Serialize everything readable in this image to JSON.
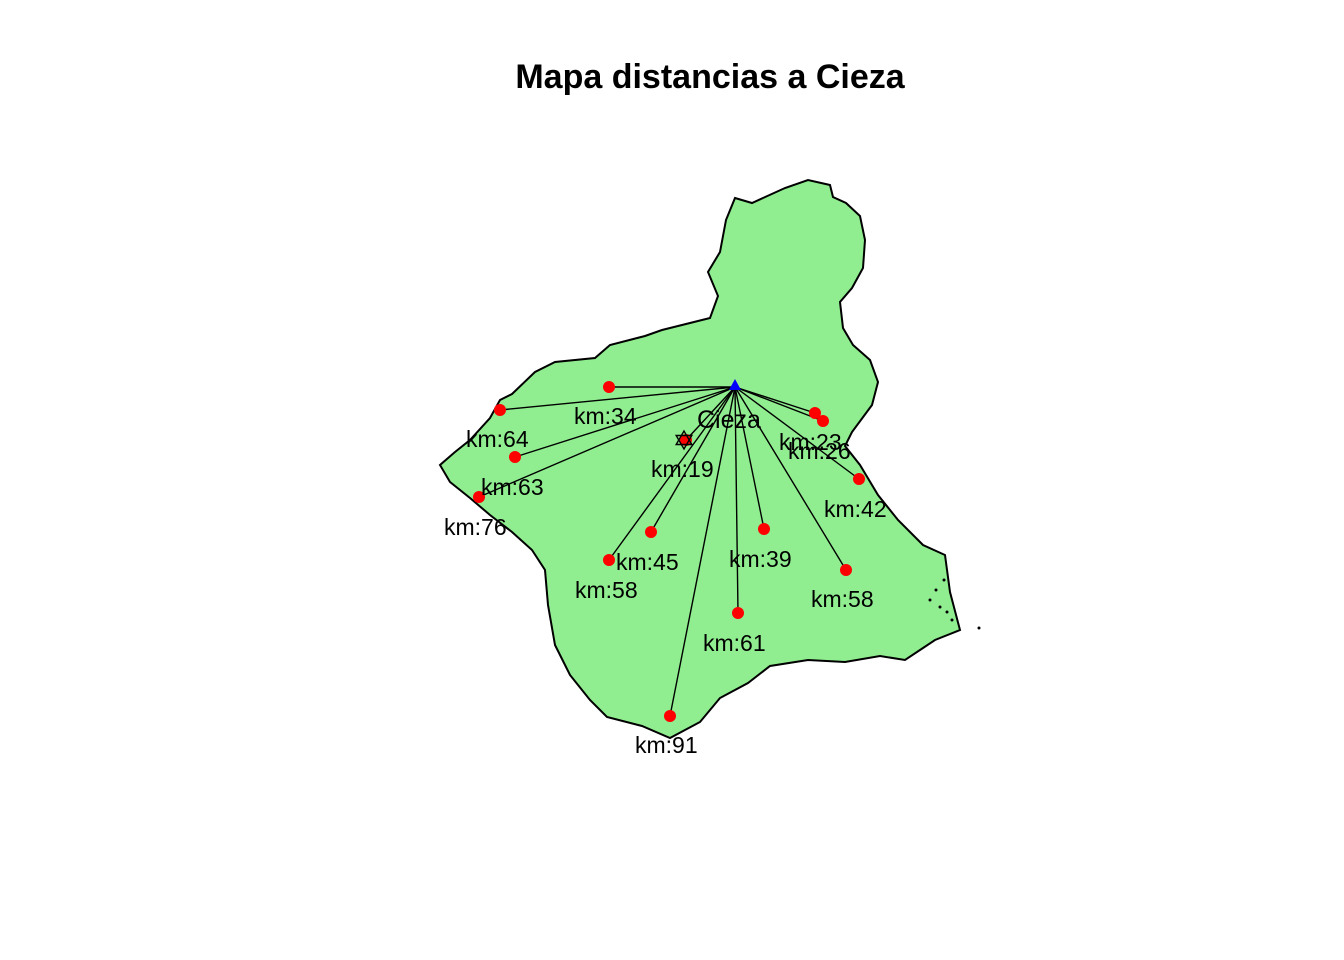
{
  "title": "Mapa distancias a Cieza",
  "colors": {
    "region_fill": "#90EE90",
    "border": "#000000",
    "point": "#FF0000",
    "origin": "#0000FF"
  },
  "origin": {
    "name": "Cieza",
    "marker": "triangle"
  },
  "secondary_marker": {
    "name": "star-of-david-icon"
  },
  "destinations": [
    {
      "km_label": "km:34"
    },
    {
      "km_label": "km:64"
    },
    {
      "km_label": "km:63"
    },
    {
      "km_label": "km:76"
    },
    {
      "km_label": "km:19"
    },
    {
      "km_label": "km:23"
    },
    {
      "km_label": "km:26"
    },
    {
      "km_label": "km:42"
    },
    {
      "km_label": "km:45"
    },
    {
      "km_label": "km:58"
    },
    {
      "km_label": "km:39"
    },
    {
      "km_label": "km:58"
    },
    {
      "km_label": "km:61"
    },
    {
      "km_label": "km:91"
    }
  ]
}
